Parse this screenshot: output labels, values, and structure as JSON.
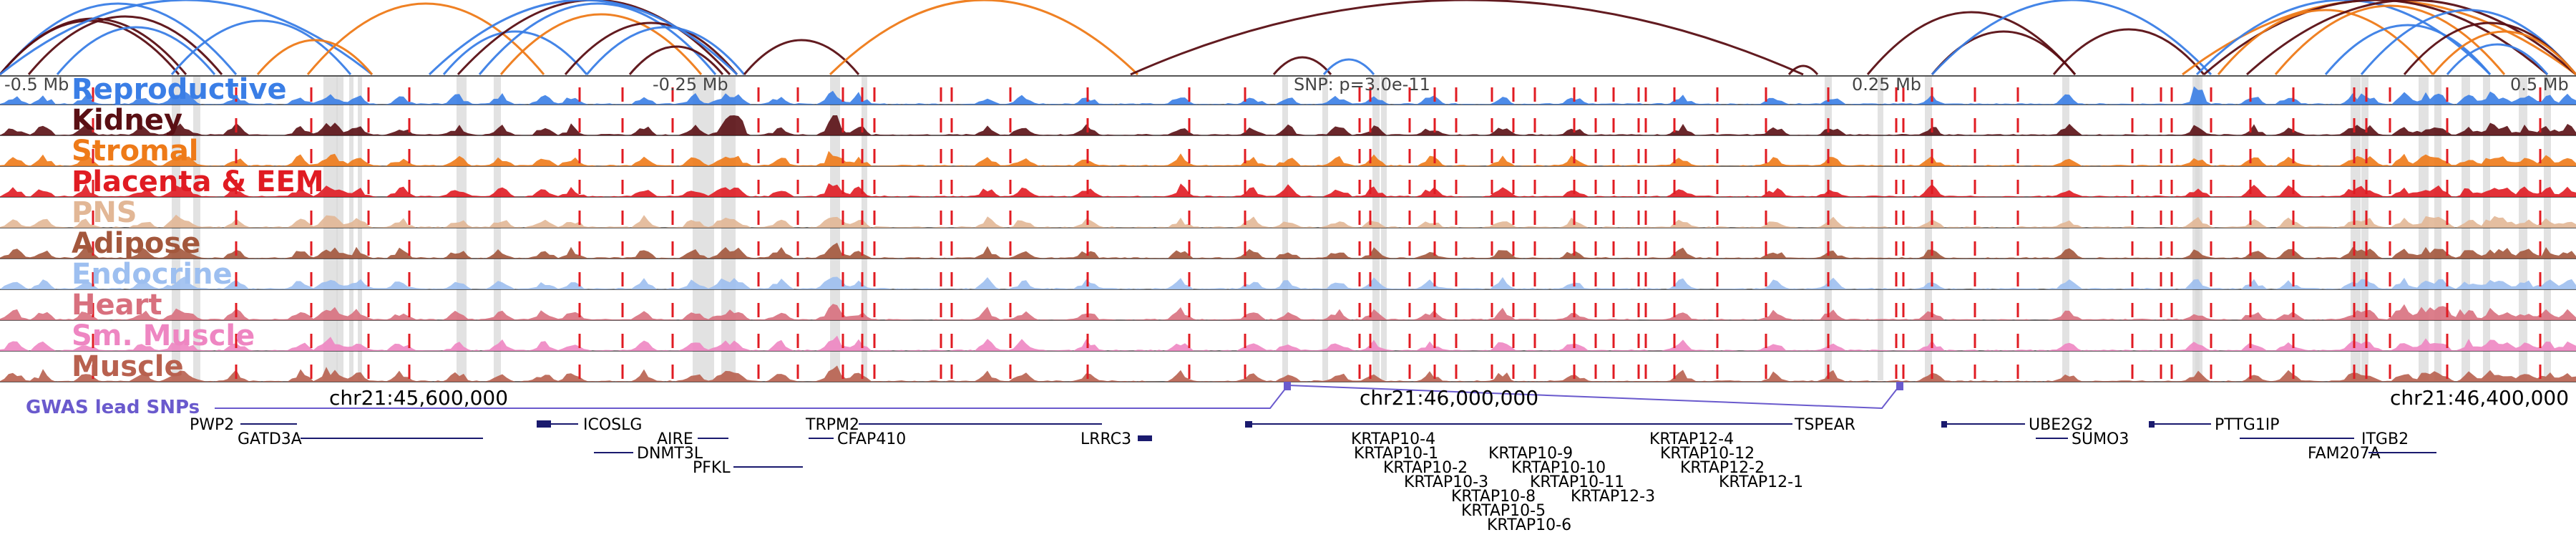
{
  "browser": {
    "ruler": {
      "left": "-0.5 Mb",
      "left_mid": "-0.25 Mb",
      "center": "SNP: p=3.0e-11",
      "right_mid": "0.25 Mb",
      "right": "0.5 Mb"
    },
    "coordinates": [
      "chr21:45,600,000",
      "chr21:46,000,000",
      "chr21:46,400,000"
    ],
    "gwas_label": "GWAS lead SNPs",
    "tracks": [
      {
        "name": "Reproductive",
        "color": "#3a7ee6"
      },
      {
        "name": "Kidney",
        "color": "#5a0f14"
      },
      {
        "name": "Stromal",
        "color": "#ee7a18"
      },
      {
        "name": "Placenta & EEM",
        "color": "#e01b22"
      },
      {
        "name": "PNS",
        "color": "#e2b796"
      },
      {
        "name": "Adipose",
        "color": "#a3573c"
      },
      {
        "name": "Endocrine",
        "color": "#9dbff0"
      },
      {
        "name": "Heart",
        "color": "#d8707e"
      },
      {
        "name": "Sm. Muscle",
        "color": "#ee86c2"
      },
      {
        "name": "Muscle",
        "color": "#b8614f"
      }
    ],
    "genes": [
      "PWP2",
      "GATD3A",
      "ICOSLG",
      "AIRE",
      "DNMT3L",
      "PFKL",
      "TRPM2",
      "CFAP410",
      "LRRC3",
      "KRTAP10-4",
      "KRTAP10-1",
      "KRTAP10-2",
      "KRTAP10-3",
      "KRTAP10-8",
      "KRTAP10-5",
      "KRTAP10-6",
      "KRTAP10-9",
      "KRTAP10-10",
      "KRTAP10-11",
      "KRTAP12-3",
      "KRTAP12-4",
      "KRTAP10-12",
      "KRTAP12-2",
      "KRTAP12-1",
      "TSPEAR",
      "UBE2G2",
      "SUMO3",
      "PTTG1IP",
      "ITGB2",
      "FAM207A"
    ],
    "colors": {
      "red_line": "#e01b22",
      "gray_highlight": "#d8d8d8",
      "gene_strand": "#1a1a6e",
      "gwas": "#6a5acd",
      "arc_blue": "#3a7ee6",
      "arc_orange": "#ee7a18",
      "arc_dark": "#5a0f14"
    }
  }
}
